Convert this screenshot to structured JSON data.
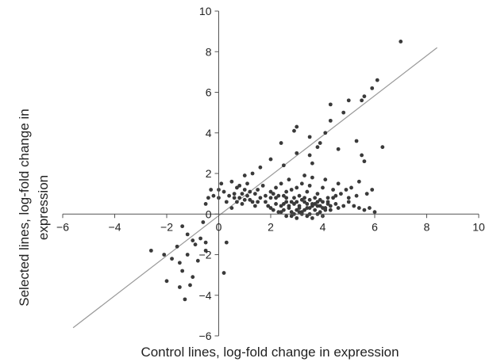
{
  "chart_data": {
    "type": "scatter",
    "xlabel": "Control lines, log-fold change in expression",
    "ylabel_line1": "Selected lines, log-fold change in",
    "ylabel_line2": "expression",
    "xlim": [
      -6,
      10
    ],
    "ylim": [
      -6,
      10
    ],
    "xticks": [
      -6,
      -4,
      -2,
      0,
      2,
      4,
      6,
      8,
      10
    ],
    "yticks": [
      -6,
      -4,
      -2,
      0,
      2,
      4,
      6,
      8,
      10
    ],
    "grid": false,
    "legend": "none",
    "point_color": "#3a3a3a",
    "trend_color": "#999999",
    "trend_line": [
      [
        -5.6,
        -5.6
      ],
      [
        8.4,
        8.2
      ]
    ],
    "points": [
      [
        7.0,
        8.5
      ],
      [
        6.1,
        6.6
      ],
      [
        5.9,
        6.2
      ],
      [
        5.6,
        5.8
      ],
      [
        5.5,
        5.6
      ],
      [
        5.0,
        5.6
      ],
      [
        4.3,
        5.4
      ],
      [
        4.8,
        5.0
      ],
      [
        4.3,
        4.6
      ],
      [
        4.1,
        4.0
      ],
      [
        6.3,
        3.3
      ],
      [
        5.3,
        3.6
      ],
      [
        3.0,
        4.3
      ],
      [
        2.9,
        4.1
      ],
      [
        2.4,
        3.5
      ],
      [
        3.5,
        3.8
      ],
      [
        3.8,
        3.3
      ],
      [
        3.9,
        3.5
      ],
      [
        5.5,
        2.9
      ],
      [
        5.6,
        2.6
      ],
      [
        3.0,
        3.0
      ],
      [
        3.5,
        2.9
      ],
      [
        2.0,
        2.7
      ],
      [
        1.6,
        2.3
      ],
      [
        2.5,
        2.4
      ],
      [
        3.6,
        2.5
      ],
      [
        4.6,
        3.2
      ],
      [
        -1.3,
        -4.2
      ],
      [
        -1.5,
        -3.6
      ],
      [
        -2.0,
        -3.3
      ],
      [
        -1.1,
        -3.5
      ],
      [
        0.2,
        -2.9
      ],
      [
        -1.4,
        -2.8
      ],
      [
        -1.0,
        -3.1
      ],
      [
        -2.6,
        -1.8
      ],
      [
        -2.1,
        -2.0
      ],
      [
        -1.8,
        -2.2
      ],
      [
        -0.5,
        -1.8
      ],
      [
        -0.5,
        -1.4
      ],
      [
        -0.7,
        -1.2
      ],
      [
        -1.2,
        -1.0
      ],
      [
        -1.4,
        -0.6
      ],
      [
        -0.6,
        -0.4
      ],
      [
        0.3,
        -1.4
      ],
      [
        -0.9,
        -1.5
      ],
      [
        -1.0,
        -1.3
      ],
      [
        -1.2,
        -2.0
      ],
      [
        -0.8,
        -2.3
      ],
      [
        -1.5,
        -2.4
      ],
      [
        -1.6,
        -1.6
      ],
      [
        0.0,
        0.8
      ],
      [
        0.2,
        1.1
      ],
      [
        0.1,
        1.5
      ],
      [
        0.6,
        1.0
      ],
      [
        -0.5,
        0.5
      ],
      [
        -0.3,
        1.2
      ],
      [
        -0.4,
        0.8
      ],
      [
        0.5,
        0.3
      ],
      [
        0.4,
        0.9
      ],
      [
        0.8,
        0.8
      ],
      [
        1.0,
        1.2
      ],
      [
        1.2,
        0.7
      ],
      [
        0.9,
        0.5
      ],
      [
        1.5,
        0.6
      ],
      [
        1.7,
        1.4
      ],
      [
        1.4,
        1.0
      ],
      [
        1.8,
        0.9
      ],
      [
        2.0,
        1.1
      ],
      [
        2.2,
        0.8
      ],
      [
        2.5,
        0.9
      ],
      [
        2.8,
        1.2
      ],
      [
        3.1,
        0.9
      ],
      [
        3.4,
        1.1
      ],
      [
        3.8,
        1.0
      ],
      [
        4.2,
        0.8
      ],
      [
        1.0,
        0.7
      ],
      [
        1.1,
        1.5
      ],
      [
        1.3,
        2.0
      ],
      [
        0.7,
        0.6
      ],
      [
        0.3,
        0.6
      ],
      [
        -0.2,
        0.9
      ],
      [
        0.0,
        1.2
      ],
      [
        0.5,
        1.6
      ],
      [
        1.0,
        1.9
      ],
      [
        2.0,
        0.3
      ],
      [
        2.1,
        0.2
      ],
      [
        2.2,
        0.5
      ],
      [
        2.3,
        0.1
      ],
      [
        2.4,
        0.4
      ],
      [
        2.5,
        0.2
      ],
      [
        2.6,
        0.6
      ],
      [
        2.7,
        0.3
      ],
      [
        2.8,
        0.1
      ],
      [
        2.9,
        0.5
      ],
      [
        3.0,
        0.2
      ],
      [
        3.1,
        0.4
      ],
      [
        3.2,
        0.1
      ],
      [
        3.3,
        0.6
      ],
      [
        3.4,
        0.3
      ],
      [
        3.5,
        0.0
      ],
      [
        3.6,
        0.5
      ],
      [
        3.7,
        0.2
      ],
      [
        3.8,
        0.4
      ],
      [
        3.9,
        0.1
      ],
      [
        4.0,
        0.6
      ],
      [
        4.1,
        0.3
      ],
      [
        4.2,
        0.5
      ],
      [
        4.3,
        0.2
      ],
      [
        4.4,
        0.8
      ],
      [
        4.5,
        0.5
      ],
      [
        4.6,
        0.3
      ],
      [
        4.8,
        0.4
      ],
      [
        5.0,
        0.6
      ],
      [
        5.2,
        0.4
      ],
      [
        5.4,
        0.3
      ],
      [
        5.6,
        0.2
      ],
      [
        5.8,
        0.3
      ],
      [
        6.0,
        0.1
      ],
      [
        2.2,
        1.3
      ],
      [
        2.4,
        1.5
      ],
      [
        2.6,
        1.1
      ],
      [
        2.7,
        1.7
      ],
      [
        3.0,
        1.3
      ],
      [
        3.2,
        1.5
      ],
      [
        3.3,
        1.9
      ],
      [
        3.5,
        1.4
      ],
      [
        3.6,
        1.8
      ],
      [
        4.0,
        1.3
      ],
      [
        4.1,
        1.7
      ],
      [
        4.4,
        1.2
      ],
      [
        4.6,
        1.5
      ],
      [
        4.9,
        1.2
      ],
      [
        5.1,
        1.3
      ],
      [
        5.4,
        1.6
      ],
      [
        5.7,
        1.0
      ],
      [
        5.9,
        1.2
      ],
      [
        2.4,
        0.1
      ],
      [
        2.6,
        -0.1
      ],
      [
        2.8,
        -0.1
      ],
      [
        3.0,
        -0.2
      ],
      [
        3.2,
        0.0
      ],
      [
        3.4,
        -0.1
      ],
      [
        3.6,
        -0.2
      ],
      [
        3.8,
        0.0
      ],
      [
        4.0,
        -0.1
      ],
      [
        1.8,
        0.6
      ],
      [
        1.9,
        0.4
      ],
      [
        2.0,
        0.8
      ],
      [
        1.6,
        0.8
      ],
      [
        1.5,
        1.2
      ],
      [
        1.2,
        1.1
      ],
      [
        1.1,
        0.9
      ],
      [
        0.9,
        1.0
      ],
      [
        0.7,
        1.3
      ],
      [
        0.6,
        0.8
      ],
      [
        0.8,
        1.4
      ],
      [
        1.3,
        0.6
      ],
      [
        1.4,
        0.4
      ],
      [
        2.1,
        1.0
      ],
      [
        2.3,
        0.9
      ],
      [
        2.6,
        0.8
      ],
      [
        2.9,
        0.8
      ],
      [
        3.3,
        0.8
      ],
      [
        3.5,
        0.7
      ],
      [
        3.7,
        0.8
      ],
      [
        3.9,
        0.7
      ],
      [
        4.2,
        0.6
      ],
      [
        4.5,
        0.9
      ],
      [
        4.7,
        1.0
      ],
      [
        5.0,
        0.8
      ],
      [
        5.3,
        0.9
      ],
      [
        2.9,
        0.0
      ],
      [
        3.1,
        0.1
      ],
      [
        3.3,
        0.2
      ],
      [
        3.5,
        0.3
      ],
      [
        3.7,
        0.5
      ],
      [
        3.9,
        0.4
      ],
      [
        4.1,
        0.2
      ],
      [
        2.7,
        0.4
      ],
      [
        2.5,
        0.5
      ],
      [
        3.0,
        0.6
      ],
      [
        3.2,
        0.7
      ],
      [
        3.4,
        0.5
      ],
      [
        3.6,
        0.4
      ],
      [
        3.8,
        0.6
      ],
      [
        4.0,
        0.3
      ],
      [
        4.3,
        0.4
      ],
      [
        2.8,
        0.6
      ],
      [
        3.1,
        0.3
      ]
    ]
  }
}
